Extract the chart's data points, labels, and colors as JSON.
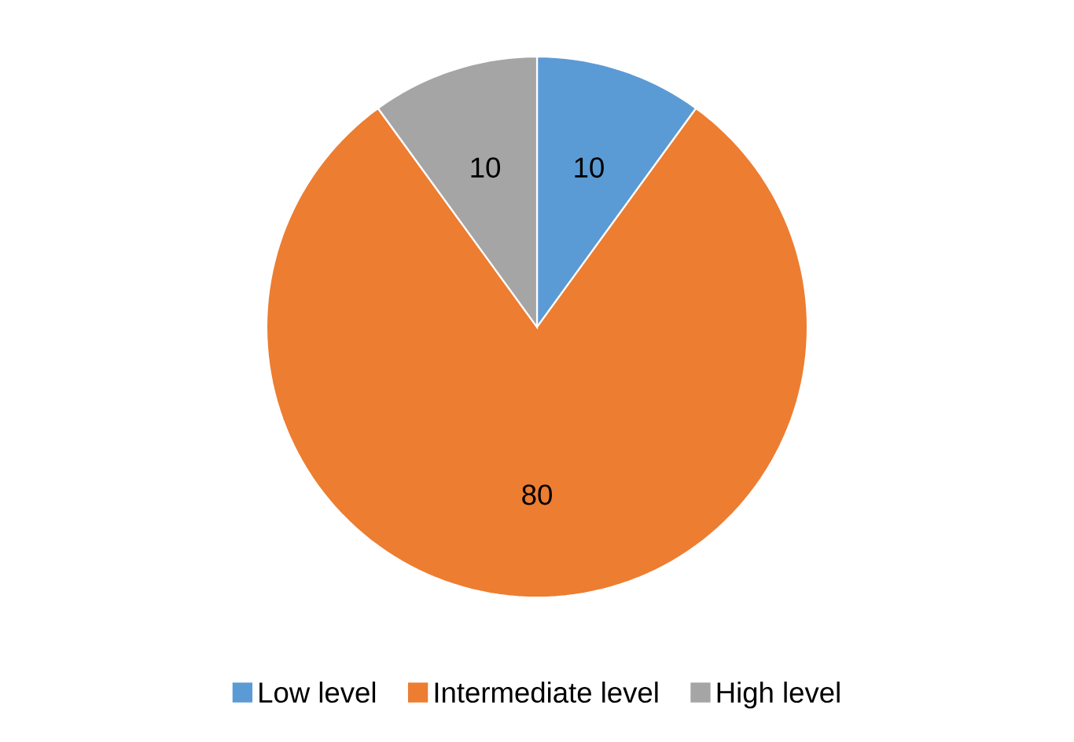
{
  "chart_data": {
    "type": "pie",
    "categories": [
      "Low level",
      "Intermediate level",
      "High level"
    ],
    "values": [
      10,
      80,
      10
    ],
    "colors": [
      "#5b9bd5",
      "#ed7d31",
      "#a5a5a5"
    ],
    "data_labels": true,
    "legend": "bottom"
  }
}
